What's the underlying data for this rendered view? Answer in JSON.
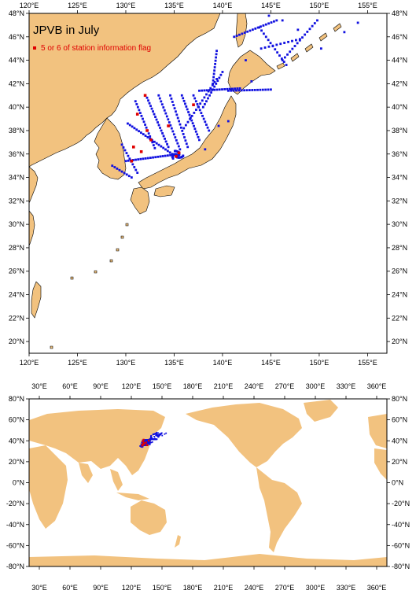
{
  "map_top": {
    "title": "JPVB in July",
    "legend_label": "5 or 6 of station information flag",
    "lon_range": [
      120,
      157
    ],
    "lat_range": [
      19,
      48
    ],
    "lon_ticks": [
      "120°E",
      "125°E",
      "130°E",
      "135°E",
      "140°E",
      "145°E",
      "150°E",
      "155°E"
    ],
    "lat_ticks": [
      "20°N",
      "22°N",
      "24°N",
      "26°N",
      "28°N",
      "30°N",
      "32°N",
      "34°N",
      "36°N",
      "38°N",
      "40°N",
      "42°N",
      "44°N",
      "46°N",
      "48°N"
    ]
  },
  "map_bottom": {
    "lon_range": [
      20,
      370
    ],
    "lat_range": [
      -80,
      80
    ],
    "lon_ticks": [
      "30°E",
      "60°E",
      "90°E",
      "120°E",
      "150°E",
      "180°E",
      "210°E",
      "240°E",
      "270°E",
      "300°E",
      "330°E",
      "360°E"
    ],
    "lat_ticks": [
      "80°N",
      "60°N",
      "40°N",
      "20°N",
      "0°N",
      "-20°N",
      "-40°N",
      "-60°N",
      "-80°N"
    ]
  },
  "colors": {
    "land": "#f2c27f",
    "station": "#1010e0",
    "flag": "#e00000"
  }
}
